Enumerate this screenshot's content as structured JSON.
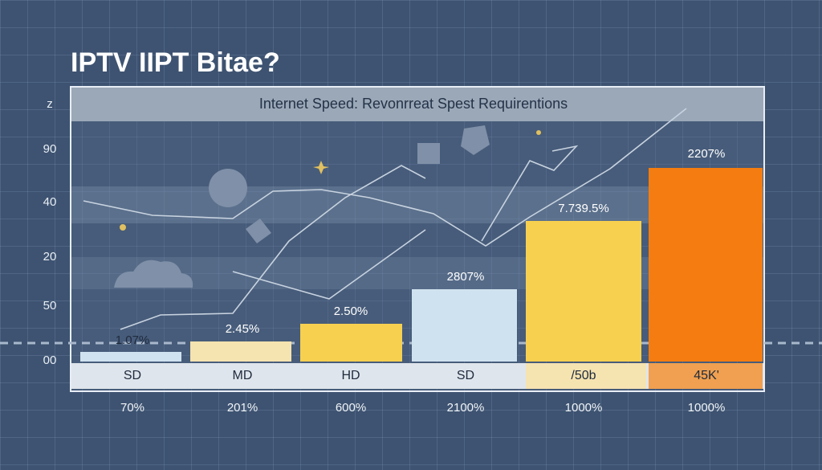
{
  "title": "IPTV IIPT Bitae?",
  "panel": {
    "title": "Internet Speed: Revonrreat Spest Requirentions",
    "y_labels": [
      "z",
      "90",
      "40",
      "20",
      "50",
      "00"
    ],
    "bars": [
      {
        "label": "1.07%",
        "category": "SD",
        "footer": "70%"
      },
      {
        "label": "2.45%",
        "category": "MD",
        "footer": "201%"
      },
      {
        "label": "2.50%",
        "category": "HD",
        "footer": "600%"
      },
      {
        "label": "2807%",
        "category": "SD",
        "footer": "2100%"
      },
      {
        "label": "7.739.5%",
        "category": "/50b",
        "footer": "1000%"
      },
      {
        "label": "2207%",
        "category": "45K'",
        "footer": "1000%"
      }
    ]
  }
}
